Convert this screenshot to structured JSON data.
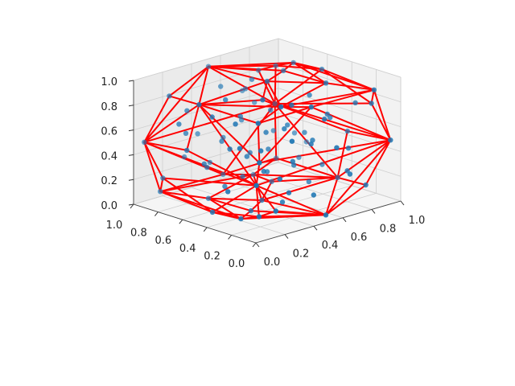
{
  "chart_data": {
    "type": "scatter",
    "subtype": "3d-scatter-with-convex-hull",
    "title": "",
    "xlabel": "",
    "ylabel": "",
    "zlabel": "",
    "xlim": [
      0,
      1
    ],
    "ylim": [
      0,
      1
    ],
    "zlim": [
      0,
      1
    ],
    "x_ticks": [
      "0.0",
      "0.2",
      "0.4",
      "0.6",
      "0.8",
      "1.0"
    ],
    "y_ticks": [
      "0.0",
      "0.2",
      "0.4",
      "0.6",
      "0.8",
      "1.0"
    ],
    "z_ticks": [
      "0.0",
      "0.2",
      "0.4",
      "0.6",
      "0.8",
      "1.0"
    ],
    "grid": true,
    "point_color": "#1f77b4",
    "hull_color": "#ff0000",
    "points": [
      [
        0.02,
        0.02,
        0.45
      ],
      [
        0.05,
        0.03,
        0.62
      ],
      [
        0.98,
        0.06,
        0.48
      ],
      [
        0.95,
        0.97,
        0.5
      ],
      [
        0.04,
        0.96,
        0.5
      ],
      [
        0.5,
        0.02,
        0.05
      ],
      [
        0.5,
        0.98,
        0.95
      ],
      [
        0.03,
        0.5,
        0.95
      ],
      [
        0.97,
        0.48,
        0.05
      ],
      [
        0.5,
        0.5,
        0.98
      ],
      [
        0.48,
        0.52,
        0.02
      ],
      [
        0.1,
        0.1,
        0.9
      ],
      [
        0.9,
        0.1,
        0.9
      ],
      [
        0.9,
        0.9,
        0.1
      ],
      [
        0.1,
        0.9,
        0.1
      ],
      [
        0.12,
        0.85,
        0.88
      ],
      [
        0.88,
        0.88,
        0.86
      ],
      [
        0.86,
        0.12,
        0.14
      ],
      [
        0.14,
        0.14,
        0.12
      ],
      [
        0.3,
        0.06,
        0.7
      ],
      [
        0.7,
        0.06,
        0.3
      ],
      [
        0.06,
        0.3,
        0.3
      ],
      [
        0.06,
        0.7,
        0.72
      ],
      [
        0.94,
        0.3,
        0.72
      ],
      [
        0.94,
        0.7,
        0.28
      ],
      [
        0.3,
        0.94,
        0.3
      ],
      [
        0.7,
        0.94,
        0.7
      ],
      [
        0.3,
        0.3,
        0.96
      ],
      [
        0.7,
        0.7,
        0.04
      ],
      [
        0.28,
        0.72,
        0.04
      ],
      [
        0.72,
        0.28,
        0.96
      ],
      [
        0.55,
        0.2,
        0.55
      ],
      [
        0.45,
        0.8,
        0.45
      ],
      [
        0.2,
        0.45,
        0.55
      ],
      [
        0.8,
        0.55,
        0.45
      ],
      [
        0.35,
        0.35,
        0.35
      ],
      [
        0.65,
        0.65,
        0.65
      ],
      [
        0.4,
        0.6,
        0.7
      ],
      [
        0.6,
        0.4,
        0.3
      ],
      [
        0.25,
        0.55,
        0.2
      ],
      [
        0.75,
        0.45,
        0.8
      ],
      [
        0.5,
        0.3,
        0.85
      ],
      [
        0.5,
        0.7,
        0.15
      ],
      [
        0.15,
        0.6,
        0.4
      ],
      [
        0.85,
        0.4,
        0.6
      ],
      [
        0.38,
        0.18,
        0.22
      ],
      [
        0.62,
        0.82,
        0.78
      ],
      [
        0.18,
        0.38,
        0.78
      ],
      [
        0.82,
        0.62,
        0.22
      ],
      [
        0.45,
        0.45,
        0.6
      ],
      [
        0.55,
        0.55,
        0.4
      ],
      [
        0.22,
        0.22,
        0.6
      ],
      [
        0.78,
        0.78,
        0.4
      ],
      [
        0.6,
        0.15,
        0.75
      ],
      [
        0.4,
        0.85,
        0.25
      ],
      [
        0.15,
        0.75,
        0.6
      ],
      [
        0.85,
        0.25,
        0.4
      ],
      [
        0.33,
        0.67,
        0.5
      ],
      [
        0.67,
        0.33,
        0.5
      ],
      [
        0.5,
        0.5,
        0.25
      ],
      [
        0.08,
        0.45,
        0.08
      ],
      [
        0.92,
        0.55,
        0.92
      ],
      [
        0.45,
        0.08,
        0.92
      ],
      [
        0.55,
        0.92,
        0.08
      ],
      [
        0.25,
        0.1,
        0.4
      ],
      [
        0.75,
        0.9,
        0.6
      ],
      [
        0.1,
        0.25,
        0.65
      ],
      [
        0.9,
        0.75,
        0.35
      ],
      [
        0.42,
        0.28,
        0.1
      ],
      [
        0.58,
        0.72,
        0.9
      ],
      [
        0.28,
        0.58,
        0.88
      ],
      [
        0.72,
        0.42,
        0.12
      ],
      [
        0.36,
        0.5,
        0.42
      ],
      [
        0.64,
        0.5,
        0.58
      ],
      [
        0.5,
        0.36,
        0.64
      ],
      [
        0.5,
        0.64,
        0.36
      ],
      [
        0.2,
        0.8,
        0.75
      ],
      [
        0.8,
        0.2,
        0.25
      ],
      [
        0.18,
        0.05,
        0.18
      ],
      [
        0.82,
        0.95,
        0.82
      ],
      [
        0.05,
        0.82,
        0.25
      ],
      [
        0.95,
        0.18,
        0.75
      ],
      [
        0.6,
        0.05,
        0.55
      ],
      [
        0.4,
        0.95,
        0.45
      ],
      [
        0.03,
        0.6,
        0.55
      ],
      [
        0.97,
        0.4,
        0.45
      ],
      [
        0.32,
        0.42,
        0.02
      ],
      [
        0.68,
        0.58,
        0.98
      ],
      [
        0.12,
        0.5,
        0.82
      ],
      [
        0.88,
        0.5,
        0.18
      ],
      [
        0.5,
        0.12,
        0.18
      ],
      [
        0.5,
        0.88,
        0.82
      ],
      [
        0.3,
        0.15,
        0.95
      ],
      [
        0.7,
        0.85,
        0.05
      ],
      [
        0.15,
        0.3,
        0.05
      ],
      [
        0.85,
        0.7,
        0.95
      ],
      [
        0.44,
        0.22,
        0.44
      ],
      [
        0.56,
        0.78,
        0.56
      ],
      [
        0.22,
        0.66,
        0.33
      ],
      [
        0.78,
        0.34,
        0.67
      ]
    ]
  }
}
